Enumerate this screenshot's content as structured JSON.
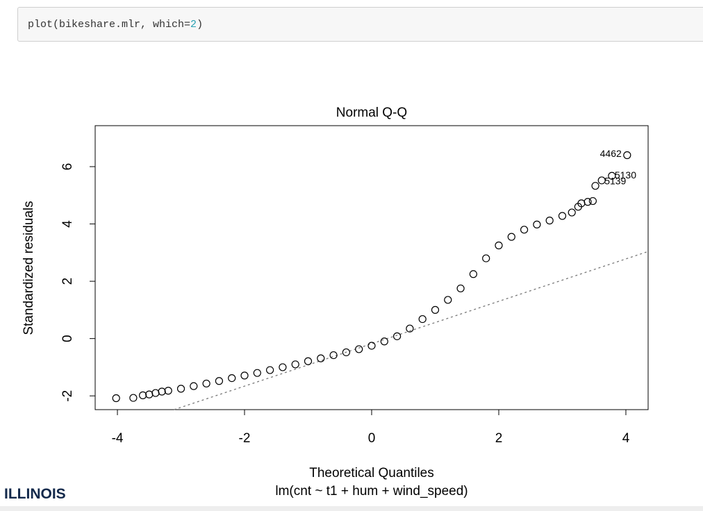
{
  "code_cell": {
    "parts": [
      "plot(bikeshare.mlr, which=",
      "2",
      ")"
    ]
  },
  "logo": "ILLINOIS",
  "chart_data": {
    "type": "scatter",
    "title": "Normal Q-Q",
    "x_label": "Theoretical Quantiles",
    "subtitle": "lm(cnt ~ t1 + hum + wind_speed)",
    "y_label": "Standardized residuals",
    "xlim": [
      -4.35,
      4.35
    ],
    "ylim": [
      -2.48,
      7.43
    ],
    "xticks": [
      -4,
      -2,
      0,
      2,
      4
    ],
    "yticks": [
      -2,
      0,
      2,
      4,
      6
    ],
    "x": [
      -4.02,
      -3.75,
      -3.6,
      -3.5,
      -3.4,
      -3.3,
      -3.2,
      -3.0,
      -2.8,
      -2.6,
      -2.4,
      -2.2,
      -2.0,
      -1.8,
      -1.6,
      -1.4,
      -1.2,
      -1.0,
      -0.8,
      -0.6,
      -0.4,
      -0.2,
      0,
      0.2,
      0.4,
      0.6,
      0.8,
      1.0,
      1.2,
      1.4,
      1.6,
      1.8,
      2.0,
      2.2,
      2.4,
      2.6,
      2.8,
      3.0,
      3.15,
      3.25,
      3.3,
      3.4,
      3.48,
      3.52,
      3.62,
      3.78,
      4.02
    ],
    "values": [
      -2.08,
      -2.07,
      -1.98,
      -1.95,
      -1.9,
      -1.85,
      -1.82,
      -1.75,
      -1.66,
      -1.57,
      -1.48,
      -1.38,
      -1.29,
      -1.2,
      -1.1,
      -1.0,
      -0.9,
      -0.79,
      -0.69,
      -0.58,
      -0.48,
      -0.37,
      -0.25,
      -0.1,
      0.08,
      0.35,
      0.68,
      1.0,
      1.35,
      1.75,
      2.25,
      2.8,
      3.25,
      3.55,
      3.8,
      3.98,
      4.12,
      4.28,
      4.4,
      4.6,
      4.72,
      4.77,
      4.8,
      5.33,
      5.52,
      5.68,
      6.4
    ],
    "annotations": [
      "4462",
      "5130",
      "5139"
    ],
    "qqline": {
      "intercept": -0.18,
      "slope": 0.74
    }
  }
}
